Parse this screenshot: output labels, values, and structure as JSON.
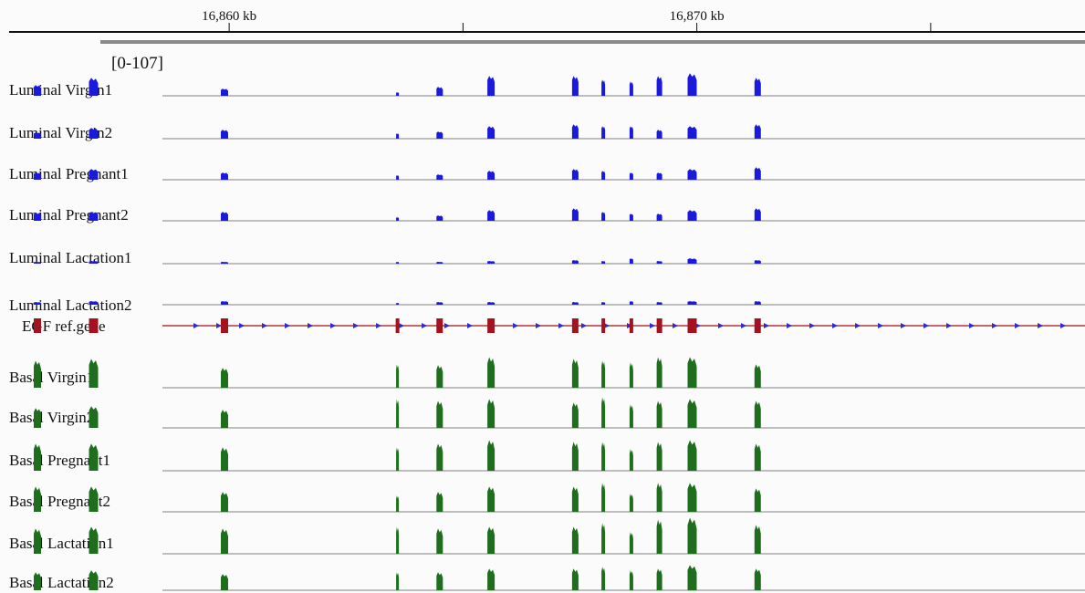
{
  "ruler": {
    "unit": "kb",
    "ticks": [
      {
        "pos_kb": 16860,
        "label": "16,860 kb"
      },
      {
        "pos_kb": 16865,
        "label": ""
      },
      {
        "pos_kb": 16870,
        "label": "16,870 kb"
      },
      {
        "pos_kb": 16875,
        "label": ""
      }
    ]
  },
  "data_range": "[0-107]",
  "colors": {
    "luminal": "#1a1adb",
    "basal": "#1e6e1e",
    "gene_exon": "#a3121f",
    "gene_line": "#b03a3a",
    "gene_arrow": "#2b2bd8",
    "baseline": "#9a9a9a"
  },
  "chart_data": {
    "type": "area",
    "xlabel": "",
    "ylabel": "",
    "x_range_kb": [
      16855.1,
      16878.3
    ],
    "y_range": [
      0,
      107
    ],
    "exons_kb": [
      16855.9,
      16857.1,
      16859.9,
      16863.6,
      16864.5,
      16865.6,
      16867.4,
      16868.0,
      16868.6,
      16869.2,
      16869.9,
      16871.3
    ],
    "tracks": [
      {
        "label": "Luminal Virgin1",
        "group": "luminal",
        "heights": [
          12,
          20,
          8,
          4,
          10,
          22,
          22,
          18,
          16,
          22,
          25,
          20
        ]
      },
      {
        "label": "Luminal Virgin2",
        "group": "luminal",
        "heights": [
          7,
          12,
          10,
          6,
          8,
          14,
          16,
          14,
          14,
          10,
          14,
          16
        ]
      },
      {
        "label": "Luminal Pregnant1",
        "group": "luminal",
        "heights": [
          8,
          12,
          8,
          5,
          6,
          10,
          12,
          10,
          8,
          8,
          12,
          14
        ]
      },
      {
        "label": "Luminal Pregnant2",
        "group": "luminal",
        "heights": [
          9,
          10,
          10,
          4,
          6,
          12,
          14,
          10,
          8,
          8,
          12,
          14
        ]
      },
      {
        "label": "Luminal Lactation1",
        "group": "luminal",
        "heights": [
          2,
          3,
          2,
          2,
          2,
          3,
          4,
          3,
          6,
          3,
          6,
          4
        ]
      },
      {
        "label": "Luminal Lactation2",
        "group": "luminal",
        "heights": [
          3,
          4,
          4,
          2,
          3,
          3,
          3,
          3,
          4,
          3,
          4,
          4
        ]
      },
      {
        "label": "Basal Virgin1",
        "group": "basal",
        "heights": [
          30,
          32,
          22,
          26,
          25,
          34,
          32,
          30,
          28,
          34,
          34,
          26
        ]
      },
      {
        "label": "Basal Virgin2",
        "group": "basal",
        "heights": [
          22,
          24,
          20,
          32,
          30,
          32,
          28,
          34,
          26,
          30,
          32,
          30
        ]
      },
      {
        "label": "Basal Pregnant1",
        "group": "basal",
        "heights": [
          30,
          30,
          26,
          26,
          30,
          34,
          32,
          32,
          24,
          32,
          34,
          30
        ]
      },
      {
        "label": "Basal Pregnant2",
        "group": "basal",
        "heights": [
          28,
          28,
          22,
          18,
          22,
          28,
          28,
          32,
          20,
          32,
          32,
          26
        ]
      },
      {
        "label": "Basal Lactation1",
        "group": "basal",
        "heights": [
          28,
          30,
          28,
          30,
          28,
          30,
          30,
          34,
          24,
          38,
          40,
          32
        ]
      },
      {
        "label": "Basal Lactation2",
        "group": "basal",
        "heights": [
          20,
          22,
          18,
          20,
          20,
          24,
          24,
          26,
          22,
          24,
          28,
          24
        ]
      }
    ],
    "gene": {
      "label": "EGF ref.gene"
    }
  }
}
